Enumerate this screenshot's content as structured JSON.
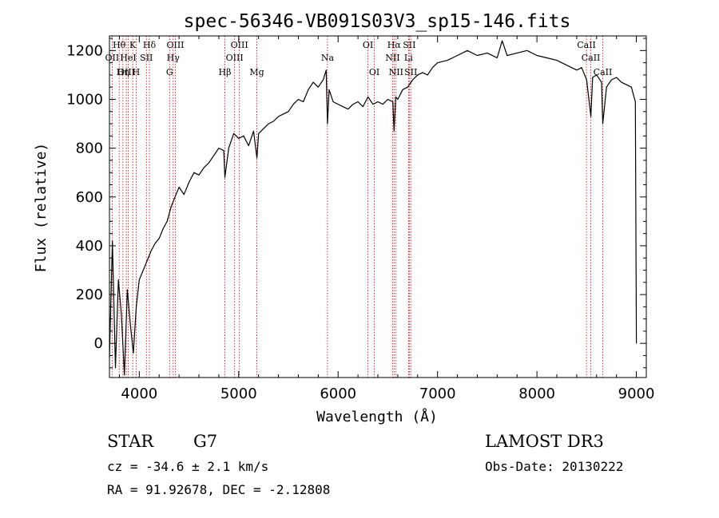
{
  "chart_data": {
    "type": "line",
    "title": "spec-56346-VB091S03V3_sp15-146.fits",
    "xlabel": "Wavelength (Å)",
    "ylabel": "Flux (relative)",
    "xlim": [
      3700,
      9100
    ],
    "ylim": [
      -140,
      1260
    ],
    "xticks": [
      4000,
      5000,
      6000,
      7000,
      8000,
      9000
    ],
    "yticks": [
      0,
      200,
      400,
      600,
      800,
      1000,
      1200
    ],
    "series": [
      {
        "name": "spectrum",
        "x": [
          3700,
          3730,
          3760,
          3790,
          3820,
          3850,
          3880,
          3910,
          3940,
          3970,
          4000,
          4040,
          4080,
          4120,
          4160,
          4200,
          4240,
          4280,
          4320,
          4360,
          4400,
          4450,
          4500,
          4550,
          4600,
          4650,
          4700,
          4750,
          4800,
          4850,
          4861,
          4900,
          4950,
          5000,
          5050,
          5100,
          5150,
          5183,
          5200,
          5250,
          5300,
          5350,
          5400,
          5450,
          5500,
          5550,
          5600,
          5650,
          5700,
          5750,
          5800,
          5850,
          5880,
          5893,
          5910,
          5950,
          6000,
          6050,
          6100,
          6150,
          6200,
          6250,
          6300,
          6350,
          6400,
          6450,
          6500,
          6550,
          6563,
          6580,
          6600,
          6650,
          6700,
          6750,
          6800,
          6850,
          6900,
          6950,
          7000,
          7100,
          7200,
          7300,
          7400,
          7500,
          7600,
          7650,
          7700,
          7800,
          7900,
          8000,
          8100,
          8200,
          8300,
          8400,
          8450,
          8500,
          8542,
          8560,
          8600,
          8650,
          8662,
          8700,
          8750,
          8800,
          8850,
          8900,
          8950,
          8990,
          9000
        ],
        "values": [
          -60,
          420,
          -100,
          260,
          120,
          -130,
          220,
          80,
          -40,
          150,
          260,
          300,
          340,
          380,
          410,
          430,
          470,
          500,
          560,
          600,
          640,
          610,
          660,
          700,
          690,
          720,
          740,
          770,
          800,
          790,
          680,
          800,
          860,
          840,
          850,
          810,
          870,
          760,
          860,
          880,
          900,
          910,
          930,
          940,
          950,
          980,
          1000,
          990,
          1040,
          1070,
          1050,
          1080,
          1120,
          900,
          1040,
          990,
          980,
          970,
          960,
          980,
          990,
          970,
          1010,
          980,
          990,
          980,
          1000,
          990,
          870,
          1010,
          1000,
          1040,
          1050,
          1080,
          1100,
          1110,
          1100,
          1130,
          1150,
          1160,
          1180,
          1200,
          1180,
          1190,
          1170,
          1240,
          1180,
          1190,
          1200,
          1180,
          1170,
          1160,
          1140,
          1120,
          1130,
          1080,
          930,
          1090,
          1100,
          1070,
          900,
          1050,
          1080,
          1090,
          1070,
          1060,
          1050,
          990,
          0
        ]
      }
    ],
    "lines": [
      {
        "label": "Hθ",
        "x": 3798,
        "row": 0
      },
      {
        "label": "OII",
        "x": 3727,
        "row": 1
      },
      {
        "label": "OIII",
        "x": 3869,
        "row": 2
      },
      {
        "label": "K",
        "x": 3934,
        "row": 0
      },
      {
        "label": "HeI",
        "x": 3889,
        "row": 1
      },
      {
        "label": "Hη",
        "x": 3835,
        "row": 2
      },
      {
        "label": "H",
        "x": 3969,
        "row": 2
      },
      {
        "label": "Hδ",
        "x": 4102,
        "row": 0
      },
      {
        "label": "SII",
        "x": 4072,
        "row": 1
      },
      {
        "label": "OIII",
        "x": 4363,
        "row": 0
      },
      {
        "label": "Hγ",
        "x": 4341,
        "row": 1
      },
      {
        "label": "G",
        "x": 4305,
        "row": 2
      },
      {
        "label": "OIII",
        "x": 5007,
        "row": 0
      },
      {
        "label": "OIII",
        "x": 4959,
        "row": 1
      },
      {
        "label": "Hβ",
        "x": 4861,
        "row": 2
      },
      {
        "label": "Mg",
        "x": 5183,
        "row": 2
      },
      {
        "label": "Na",
        "x": 5893,
        "row": 1
      },
      {
        "label": "OI",
        "x": 6300,
        "row": 0
      },
      {
        "label": "OI",
        "x": 6364,
        "row": 2
      },
      {
        "label": "Hα",
        "x": 6563,
        "row": 0
      },
      {
        "label": "SII",
        "x": 6716,
        "row": 0
      },
      {
        "label": "NII",
        "x": 6548,
        "row": 1
      },
      {
        "label": "Li",
        "x": 6708,
        "row": 1
      },
      {
        "label": "NII",
        "x": 6583,
        "row": 2
      },
      {
        "label": "SII",
        "x": 6731,
        "row": 2
      },
      {
        "label": "CaII",
        "x": 8498,
        "row": 0
      },
      {
        "label": "CaII",
        "x": 8542,
        "row": 1
      },
      {
        "label": "CaII",
        "x": 8662,
        "row": 2
      }
    ]
  },
  "info": {
    "class": "STAR",
    "subclass": "G7",
    "survey": "LAMOST DR3",
    "cz": "cz = -34.6 ± 2.1 km/s",
    "obs_date": "Obs-Date: 20130222",
    "radec": "RA =  91.92678, DEC =  -2.12808"
  },
  "colors": {
    "spectrum": "#000000",
    "line_marker": "#cc0000",
    "axis": "#000000"
  }
}
